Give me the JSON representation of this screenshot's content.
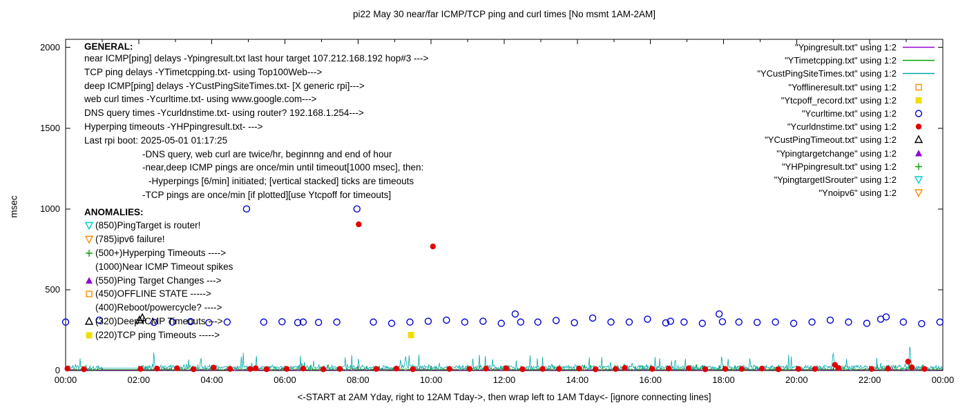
{
  "title": "pi22 May 30  near/far ICMP/TCP ping and curl times [No msmt 1AM-2AM]",
  "axes": {
    "ylabel": "msec",
    "xlabel": "<-START at 2AM Yday, right to 12AM Tday->, then wrap left to 1AM Tday<- [ignore connecting lines]"
  },
  "general": {
    "heading": "GENERAL:",
    "lines": [
      {
        "text": "near ICMP[ping] delays -Ypingresult.txt last hour target 107.212.168.192 hop#3 --->",
        "indent": 0
      },
      {
        "text": "TCP ping delays -YTimetcpping.txt- using Top100Web--->",
        "indent": 0
      },
      {
        "text": "deep ICMP[ping] delays -YCustPingSiteTimes.txt- [X generic rpi]--->",
        "indent": 0
      },
      {
        "text": "web curl times -Ycurltime.txt- using www.google.com--->",
        "indent": 0
      },
      {
        "text": "DNS query times -Ycurldnstime.txt- using router? 192.168.1.254--->",
        "indent": 0
      },
      {
        "text": "Hyperping timeouts -YHPpingresult.txt- --->",
        "indent": 0
      },
      {
        "text": "Last rpi boot: 2025-05-01 01:17:25",
        "indent": 0
      },
      {
        "text": "-DNS query, web curl are twice/hr, beginnng and end of hour",
        "indent": 1
      },
      {
        "text": "-near,deep ICMP pings are once/min until timeout[1000 msec], then:",
        "indent": 1
      },
      {
        "text": "-Hyperpings [6/min] initiated; [vertical stacked] ticks are timeouts",
        "indent": 2
      },
      {
        "text": "-TCP pings are once/min [if plotted][use Ytcpoff for timeouts]",
        "indent": 1
      }
    ]
  },
  "anomalies": {
    "heading": "ANOMALIES:",
    "items": [
      {
        "marker": "open-down-triangle",
        "color": "#00cccc",
        "icon": "router-pingtarget-icon",
        "text": "(850)PingTarget is router!"
      },
      {
        "marker": "open-down-triangle",
        "color": "#ff8c00",
        "icon": "ipv6-failure-icon",
        "text": "(785)ipv6 failure!"
      },
      {
        "marker": "plus",
        "color": "#00a000",
        "icon": "hyperping-timeout-icon",
        "text": "(500+)Hyperping Timeouts ---->"
      },
      {
        "marker": "none",
        "color": "#000000",
        "icon": "near-icmp-timeout-icon",
        "text": "(1000)Near ICMP Timeout spikes"
      },
      {
        "marker": "filled-triangle",
        "color": "#9400d3",
        "icon": "ping-target-change-icon",
        "text": "(550)Ping Target Changes --->"
      },
      {
        "marker": "open-square",
        "color": "#ff8c00",
        "icon": "offline-state-icon",
        "text": "(450)OFFLINE STATE ----->"
      },
      {
        "marker": "none",
        "color": "#000000",
        "icon": "reboot-icon",
        "text": "(400)Reboot/powercycle? ---->"
      },
      {
        "marker": "open-triangle",
        "color": "#000000",
        "icon": "deep-icmp-timeout-icon",
        "text": "(320)Deep ICMP Timeouts --->"
      },
      {
        "marker": "filled-square",
        "color": "#efdf00",
        "icon": "tcp-ping-timeout-icon",
        "text": "(220)TCP ping Timeouts ----->"
      }
    ]
  },
  "legend": {
    "entries": [
      {
        "label": "\"Ypingresult.txt\" using 1:2",
        "swatch": "line",
        "color": "#9400d3",
        "icon": "ypingresult-line-icon"
      },
      {
        "label": "\"YTimetcpping.txt\" using 1:2",
        "swatch": "line",
        "color": "#00a000",
        "icon": "ytimetcpping-line-icon"
      },
      {
        "label": "\"YCustPingSiteTimes.txt\" using 1:2",
        "swatch": "line",
        "color": "#00a8a8",
        "icon": "ycustpingsitetimes-line-icon"
      },
      {
        "label": "\"Yofflineresult.txt\" using 1:2",
        "swatch": "open-square",
        "color": "#ff8c00",
        "icon": "yofflineresult-marker-icon"
      },
      {
        "label": "\"Ytcpoff_record.txt\" using 1:2",
        "swatch": "filled-square",
        "color": "#efdf00",
        "icon": "ytcpoff-record-marker-icon"
      },
      {
        "label": "\"Ycurltime.txt\" using 1:2",
        "swatch": "open-circle",
        "color": "#0000d0",
        "icon": "ycurltime-marker-icon"
      },
      {
        "label": "\"Ycurldnstime.txt\" using 1:2",
        "swatch": "filled-circle",
        "color": "#e00000",
        "icon": "ycurldnstime-marker-icon"
      },
      {
        "label": "\"YCustPingTimeout.txt\" using 1:2",
        "swatch": "open-triangle",
        "color": "#000000",
        "icon": "ycustpingtimeout-marker-icon"
      },
      {
        "label": "\"Ypingtargetchange\" using 1:2",
        "swatch": "filled-triangle",
        "color": "#9400d3",
        "icon": "ypingtargetchange-marker-icon"
      },
      {
        "label": "\"YHPpingresult.txt\" using 1:2",
        "swatch": "plus",
        "color": "#00a000",
        "icon": "yhppingresult-marker-icon"
      },
      {
        "label": "\"YpingtargetISrouter\" using 1:2",
        "swatch": "open-down-triangle",
        "color": "#00cccc",
        "icon": "ypingtargetisrouter-marker-icon"
      },
      {
        "label": "\"Ynoipv6\" using 1:2",
        "swatch": "open-down-triangle",
        "color": "#ff8c00",
        "icon": "ynoipv6-marker-icon"
      }
    ]
  },
  "chart_data": {
    "type": "scatter",
    "title": "pi22 May 30  near/far ICMP/TCP ping and curl times [No msmt 1AM-2AM]",
    "xlabel": "<-START at 2AM Yday, right to 12AM Tday->, then wrap left to 1AM Tday<- [ignore connecting lines]",
    "ylabel": "msec",
    "x_unit": "hours 0-24, ticks every 2h",
    "x_tick_hours": [
      0,
      2,
      4,
      6,
      8,
      10,
      12,
      14,
      16,
      18,
      20,
      22,
      24
    ],
    "x_tick_labels": [
      "00:00",
      "02:00",
      "04:00",
      "06:00",
      "08:00",
      "10:00",
      "12:00",
      "14:00",
      "16:00",
      "18:00",
      "20:00",
      "22:00",
      "00:00"
    ],
    "ylim": [
      0,
      2050
    ],
    "y_ticks": [
      0,
      500,
      1000,
      1500,
      2000
    ],
    "grid": false,
    "legend_position": "top-right-outside-style",
    "measurement_gap": "no measurements 1AM-2AM",
    "noise_series": [
      {
        "name": "Ypingresult.txt",
        "style": "noisy-line",
        "color": "#9400d3",
        "base": 5,
        "amp": 12,
        "seed": 11,
        "spikes": []
      },
      {
        "name": "YTimetcpping.txt",
        "style": "noisy-line",
        "color": "#00a000",
        "base": 10,
        "amp": 30,
        "seed": 22,
        "spikes": []
      },
      {
        "name": "YCustPingSiteTimes.txt",
        "style": "noisy-line",
        "color": "#00a8a8",
        "base": 25,
        "amp": 90,
        "seed": 33,
        "spikes": [
          {
            "x": 9.3,
            "y": 100
          },
          {
            "x": 21.0,
            "y": 125
          },
          {
            "x": 23.1,
            "y": 170
          }
        ]
      }
    ],
    "point_series": [
      {
        "name": "Ycurltime.txt",
        "marker": "open-circle",
        "color": "#0000d0",
        "points": [
          [
            0,
            300
          ],
          [
            0.92,
            312
          ],
          [
            2.42,
            298
          ],
          [
            2.92,
            300
          ],
          [
            3.42,
            303
          ],
          [
            3.92,
            296
          ],
          [
            4.42,
            300
          ],
          [
            4.95,
            1000
          ],
          [
            5.42,
            300
          ],
          [
            5.92,
            302
          ],
          [
            6.35,
            297
          ],
          [
            6.5,
            300
          ],
          [
            6.92,
            298
          ],
          [
            7.42,
            300
          ],
          [
            7.97,
            1000
          ],
          [
            8.42,
            300
          ],
          [
            8.92,
            292
          ],
          [
            9.42,
            300
          ],
          [
            9.92,
            305
          ],
          [
            10.42,
            312
          ],
          [
            10.92,
            300
          ],
          [
            11.42,
            305
          ],
          [
            11.92,
            292
          ],
          [
            12.3,
            350
          ],
          [
            12.45,
            300
          ],
          [
            12.92,
            300
          ],
          [
            13.42,
            310
          ],
          [
            13.92,
            296
          ],
          [
            14.42,
            325
          ],
          [
            14.92,
            300
          ],
          [
            15.42,
            300
          ],
          [
            15.92,
            318
          ],
          [
            16.42,
            295
          ],
          [
            16.55,
            305
          ],
          [
            16.92,
            300
          ],
          [
            17.42,
            292
          ],
          [
            17.88,
            350
          ],
          [
            17.97,
            302
          ],
          [
            18.42,
            300
          ],
          [
            18.92,
            298
          ],
          [
            19.42,
            300
          ],
          [
            19.92,
            292
          ],
          [
            20.42,
            300
          ],
          [
            20.92,
            312
          ],
          [
            21.42,
            300
          ],
          [
            21.92,
            292
          ],
          [
            22.3,
            318
          ],
          [
            22.45,
            332
          ],
          [
            22.92,
            300
          ],
          [
            23.42,
            290
          ],
          [
            23.92,
            300
          ]
        ]
      },
      {
        "name": "Ycurldnstime.txt",
        "marker": "filled-circle",
        "color": "#e00000",
        "points": [
          [
            0.05,
            12
          ],
          [
            0.5,
            8
          ],
          [
            2.05,
            10
          ],
          [
            2.5,
            12
          ],
          [
            3.05,
            14
          ],
          [
            3.5,
            8
          ],
          [
            4.05,
            18
          ],
          [
            4.5,
            10
          ],
          [
            5.05,
            10
          ],
          [
            5.2,
            14
          ],
          [
            5.5,
            8
          ],
          [
            6.05,
            10
          ],
          [
            6.5,
            12
          ],
          [
            7.05,
            8
          ],
          [
            7.5,
            10
          ],
          [
            8.02,
            905
          ],
          [
            8.5,
            10
          ],
          [
            9.05,
            12
          ],
          [
            9.5,
            8
          ],
          [
            10.05,
            768
          ],
          [
            10.5,
            10
          ],
          [
            11.05,
            10
          ],
          [
            11.5,
            12
          ],
          [
            12.05,
            14
          ],
          [
            12.5,
            8
          ],
          [
            13.05,
            10
          ],
          [
            13.5,
            10
          ],
          [
            14.05,
            12
          ],
          [
            14.5,
            8
          ],
          [
            15.05,
            10
          ],
          [
            15.3,
            16
          ],
          [
            16.05,
            10
          ],
          [
            16.5,
            12
          ],
          [
            17.05,
            14
          ],
          [
            17.5,
            8
          ],
          [
            18.05,
            10
          ],
          [
            18.5,
            10
          ],
          [
            19.05,
            12
          ],
          [
            19.5,
            8
          ],
          [
            20.05,
            10
          ],
          [
            20.5,
            10
          ],
          [
            21.05,
            35
          ],
          [
            21.15,
            15
          ],
          [
            22.05,
            10
          ],
          [
            22.5,
            12
          ],
          [
            23.05,
            55
          ],
          [
            23.15,
            20
          ],
          [
            23.5,
            10
          ]
        ]
      },
      {
        "name": "Ytcpoff_record.txt",
        "marker": "filled-square",
        "color": "#efdf00",
        "points": [
          [
            9.45,
            220
          ]
        ]
      },
      {
        "name": "YCustPingTimeout.txt",
        "marker": "open-triangle",
        "color": "#000000",
        "points": [
          [
            2.02,
            312
          ],
          [
            2.1,
            326
          ]
        ]
      }
    ]
  }
}
